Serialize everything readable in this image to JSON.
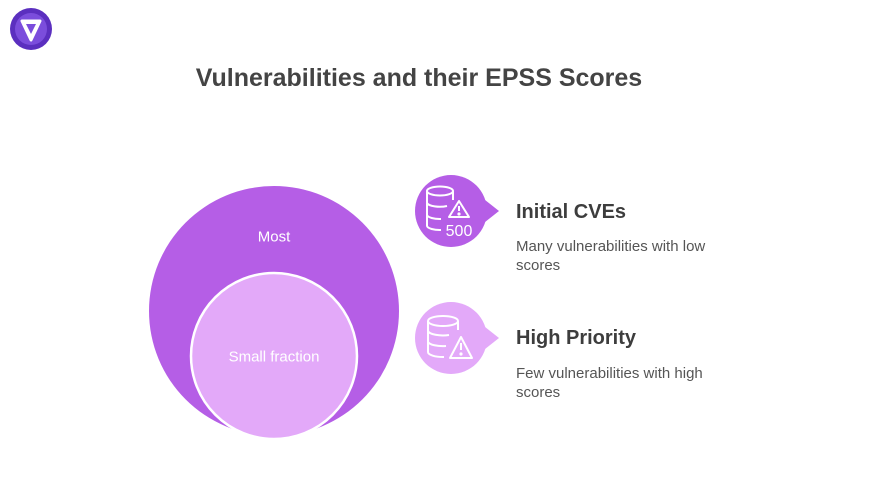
{
  "title": "Vulnerabilities and their EPSS Scores",
  "colors": {
    "outer": "#b55ee6",
    "inner": "#e3a9f9",
    "outer_stroke": "#ffffff",
    "title": "#444444"
  },
  "circles": {
    "outer_label": "Most",
    "inner_label": "Small fraction"
  },
  "items": [
    {
      "icon": "database-warning-icon",
      "badge": "500",
      "title": "Initial CVEs",
      "desc": "Many vulnerabilities with low scores"
    },
    {
      "icon": "database-warning-icon",
      "title": "High Priority",
      "desc": "Few vulnerabilities with high scores"
    }
  ]
}
